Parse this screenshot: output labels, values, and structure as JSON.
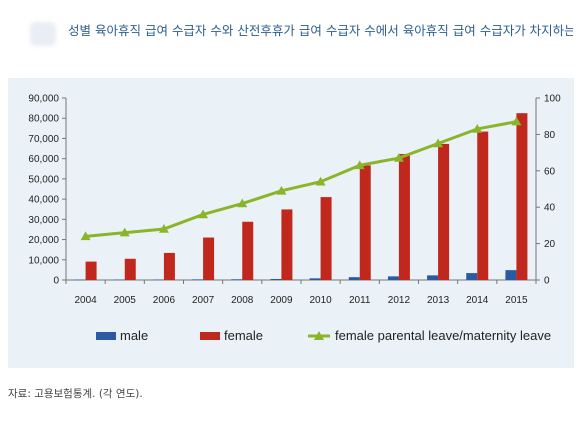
{
  "title": "성별 육아휴직 급여 수급자 수와 산전후휴가 급여 수급자 수에서 육아휴직 급여 수급자가 차지하는 비중",
  "source": "자료: 고용보험통계. (각 연도).",
  "chart_data": {
    "type": "bar",
    "categories": [
      "2004",
      "2005",
      "2006",
      "2007",
      "2008",
      "2009",
      "2010",
      "2011",
      "2012",
      "2013",
      "2014",
      "2015"
    ],
    "series": [
      {
        "name": "male",
        "type": "bar",
        "axis": "left",
        "color": "#2b5aa0",
        "values": [
          181,
          208,
          230,
          310,
          355,
          502,
          819,
          1402,
          1790,
          2293,
          3421,
          4872
        ]
      },
      {
        "name": "female",
        "type": "bar",
        "axis": "left",
        "color": "#c0281e",
        "values": [
          9100,
          10500,
          13400,
          21000,
          28800,
          34900,
          41000,
          56700,
          62300,
          67300,
          73400,
          82500
        ]
      },
      {
        "name": "female parental leave/maternity leave",
        "type": "line",
        "axis": "right",
        "color": "#8ab52a",
        "values": [
          24,
          26,
          28,
          36,
          42,
          49,
          54,
          63,
          67,
          75,
          83,
          87
        ]
      }
    ],
    "left_axis": {
      "min": 0,
      "max": 90000,
      "ticks": [
        "0",
        "10,000",
        "20,000",
        "30,000",
        "40,000",
        "50,000",
        "60,000",
        "70,000",
        "80,000",
        "90,000"
      ]
    },
    "right_axis": {
      "min": 0,
      "max": 100,
      "ticks": [
        "0",
        "20",
        "40",
        "60",
        "80",
        "100"
      ]
    },
    "grid": false,
    "legend": "bottom"
  }
}
